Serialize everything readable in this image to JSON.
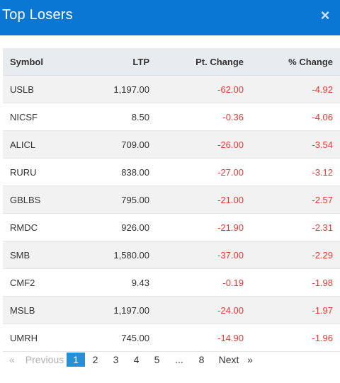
{
  "modal": {
    "title": "Top Losers",
    "close_label": "×"
  },
  "table": {
    "headers": {
      "symbol": "Symbol",
      "ltp": "LTP",
      "pt_change": "Pt. Change",
      "pct_change": "% Change"
    },
    "rows": [
      {
        "symbol": "USLB",
        "ltp": "1,197.00",
        "pt_change": "-62.00",
        "pct_change": "-4.92"
      },
      {
        "symbol": "NICSF",
        "ltp": "8.50",
        "pt_change": "-0.36",
        "pct_change": "-4.06"
      },
      {
        "symbol": "ALICL",
        "ltp": "709.00",
        "pt_change": "-26.00",
        "pct_change": "-3.54"
      },
      {
        "symbol": "RURU",
        "ltp": "838.00",
        "pt_change": "-27.00",
        "pct_change": "-3.12"
      },
      {
        "symbol": "GBLBS",
        "ltp": "795.00",
        "pt_change": "-21.00",
        "pct_change": "-2.57"
      },
      {
        "symbol": "RMDC",
        "ltp": "926.00",
        "pt_change": "-21.90",
        "pct_change": "-2.31"
      },
      {
        "symbol": "SMB",
        "ltp": "1,580.00",
        "pt_change": "-37.00",
        "pct_change": "-2.29"
      },
      {
        "symbol": "CMF2",
        "ltp": "9.43",
        "pt_change": "-0.19",
        "pct_change": "-1.98"
      },
      {
        "symbol": "MSLB",
        "ltp": "1,197.00",
        "pt_change": "-24.00",
        "pct_change": "-1.97"
      },
      {
        "symbol": "UMRH",
        "ltp": "745.00",
        "pt_change": "-14.90",
        "pct_change": "-1.96"
      }
    ]
  },
  "pagination": {
    "first_arrow": "«",
    "previous_label": "Previous",
    "pages": [
      "1",
      "2",
      "3",
      "4",
      "5"
    ],
    "active_page": "1",
    "ellipsis": "...",
    "last_page": "8",
    "next_label": "Next",
    "last_arrow": "»"
  },
  "colors": {
    "header_bg": "#0b77d4",
    "negative": "#e53935",
    "active_page_bg": "#2590d9"
  }
}
